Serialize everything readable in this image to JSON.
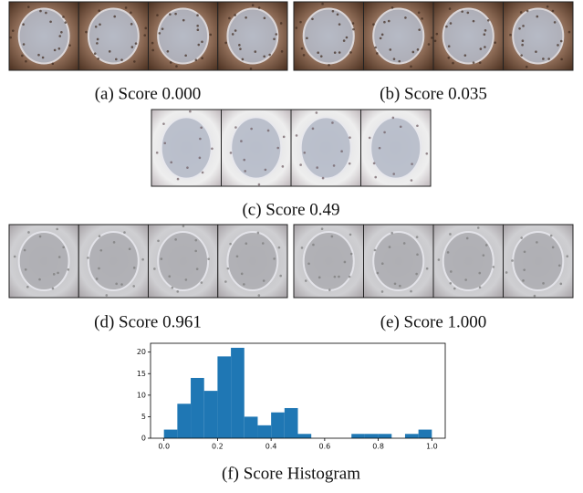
{
  "panels": [
    {
      "caption": "(a) Score 0.000"
    },
    {
      "caption": "(b) Score 0.035"
    },
    {
      "caption": "(c) Score 0.49"
    },
    {
      "caption": "(d) Score 0.961"
    },
    {
      "caption": "(e) Score 1.000"
    }
  ],
  "chart_data": {
    "type": "histogram",
    "title": "(f) Score Histogram",
    "bins": [
      0,
      0.05,
      0.1,
      0.15,
      0.2,
      0.25,
      0.3,
      0.35,
      0.4,
      0.45,
      0.5,
      0.55,
      0.6,
      0.65,
      0.7,
      0.75,
      0.8,
      0.85,
      0.9,
      0.95,
      1.0
    ],
    "values": [
      2,
      8,
      14,
      11,
      19,
      21,
      5,
      3,
      6,
      7,
      1,
      0,
      0,
      0,
      1,
      1,
      1,
      0,
      1,
      2
    ],
    "color": "#1f77b4",
    "xlim": [
      -0.05,
      1.05
    ],
    "xticks": [
      {
        "value": 0,
        "label": "0.0"
      },
      0.2,
      0.4,
      0.6,
      0.8,
      {
        "value": 1,
        "label": "1.0"
      }
    ],
    "ylim": [
      0,
      22.05
    ],
    "yticks": [
      0,
      5,
      10,
      15,
      20
    ]
  }
}
